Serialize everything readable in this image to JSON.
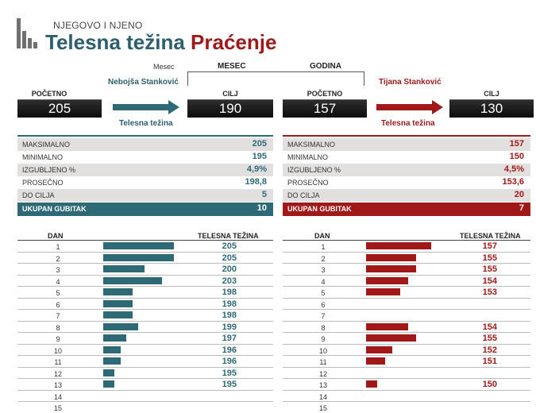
{
  "header": {
    "supertitle": "NJEGOVO I NJENO",
    "title_part1": "Telesna težina",
    "title_part2": "Praćenje"
  },
  "controls": {
    "mesec_small": "Mesec",
    "mesec": "MESEC",
    "godina": "GODINA",
    "arrow_label": "Telesna težina"
  },
  "colors": {
    "him": "#2e6a76",
    "her": "#a11818"
  },
  "him": {
    "name": "Nebojša Stanković",
    "start_label": "POČETNO",
    "start": "205",
    "goal_label": "CILJ",
    "goal": "190",
    "summary": [
      {
        "label": "MAKSIMALNO",
        "value": "205"
      },
      {
        "label": "MINIMALNO",
        "value": "195"
      },
      {
        "label": "IZGUBLJENO %",
        "value": "4,9%"
      },
      {
        "label": "PROSEČNO",
        "value": "198,8"
      },
      {
        "label": "DO CILJA",
        "value": "5"
      }
    ],
    "total_label": "UKUPAN GUBITAK",
    "total": "10"
  },
  "her": {
    "name": "Tijana Stanković",
    "start_label": "POČETNO",
    "start": "157",
    "goal_label": "CILJ",
    "goal": "130",
    "summary": [
      {
        "label": "MAKSIMALNO",
        "value": "157"
      },
      {
        "label": "MINIMALNO",
        "value": "150"
      },
      {
        "label": "IZGUBLJENO %",
        "value": "4,5%"
      },
      {
        "label": "PROSEČNO",
        "value": "153,6"
      },
      {
        "label": "DO CILJA",
        "value": "20"
      }
    ],
    "total_label": "UKUPAN GUBITAK",
    "total": "7"
  },
  "table": {
    "col_day": "DAN",
    "col_weight": "TELESNA TEŽINA"
  },
  "chart_data": [
    {
      "type": "bar",
      "categories": [
        "1",
        "2",
        "3",
        "4",
        "5",
        "6",
        "7",
        "8",
        "9",
        "10",
        "11",
        "12",
        "13",
        "14",
        "15"
      ],
      "values": [
        205,
        205,
        200,
        203,
        198,
        198,
        198,
        199,
        197,
        196,
        196,
        195,
        195,
        null,
        null
      ]
    },
    {
      "type": "bar",
      "categories": [
        "1",
        "2",
        "3",
        "4",
        "5",
        "6",
        "7",
        "8",
        "9",
        "10",
        "11",
        "12",
        "13",
        "14",
        "15"
      ],
      "values": [
        157,
        155,
        155,
        154,
        153,
        null,
        null,
        154,
        155,
        152,
        151,
        null,
        150,
        null,
        null
      ]
    }
  ]
}
